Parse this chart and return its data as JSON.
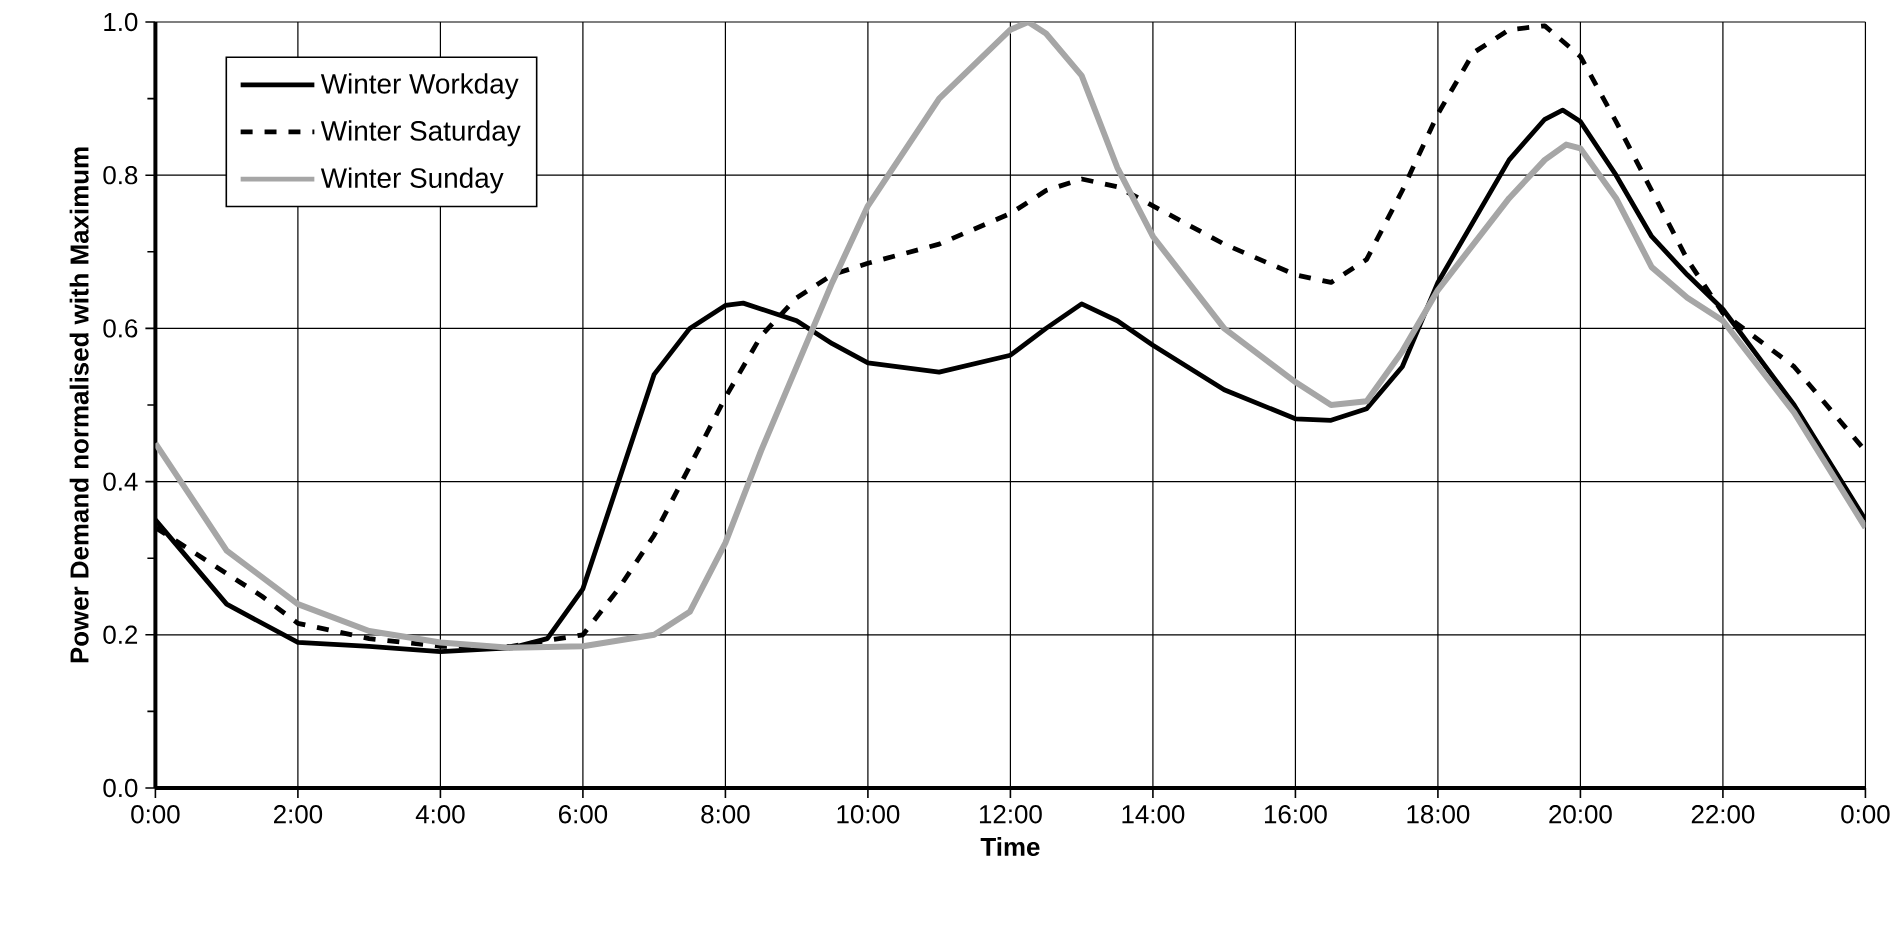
{
  "chart_data": {
    "type": "line",
    "xlabel": "Time",
    "ylabel": "Power Demand normalised with Maximum",
    "xlim": [
      0,
      24
    ],
    "ylim": [
      0,
      1
    ],
    "xticks": [
      {
        "value": 0,
        "label": "0:00"
      },
      {
        "value": 2,
        "label": "2:00"
      },
      {
        "value": 4,
        "label": "4:00"
      },
      {
        "value": 6,
        "label": "6:00"
      },
      {
        "value": 8,
        "label": "8:00"
      },
      {
        "value": 10,
        "label": "10:00"
      },
      {
        "value": 12,
        "label": "12:00"
      },
      {
        "value": 14,
        "label": "14:00"
      },
      {
        "value": 16,
        "label": "16:00"
      },
      {
        "value": 18,
        "label": "18:00"
      },
      {
        "value": 20,
        "label": "20:00"
      },
      {
        "value": 22,
        "label": "22:00"
      },
      {
        "value": 24,
        "label": "0:00"
      }
    ],
    "yticks": [
      {
        "value": 0,
        "label": "0.0"
      },
      {
        "value": 0.1,
        "label": null
      },
      {
        "value": 0.2,
        "label": "0.2"
      },
      {
        "value": 0.3,
        "label": null
      },
      {
        "value": 0.4,
        "label": "0.4"
      },
      {
        "value": 0.5,
        "label": null
      },
      {
        "value": 0.6,
        "label": "0.6"
      },
      {
        "value": 0.7,
        "label": null
      },
      {
        "value": 0.8,
        "label": "0.8"
      },
      {
        "value": 0.9,
        "label": null
      },
      {
        "value": 1,
        "label": "1.0"
      }
    ],
    "grid": true,
    "legend": "top left",
    "series": [
      {
        "name": "Winter Workday",
        "color": "#000000",
        "line_style": "solid",
        "x": [
          0,
          1,
          2,
          3,
          4,
          5,
          5.5,
          6,
          6.5,
          7,
          7.5,
          8,
          8.25,
          9,
          9.5,
          10,
          11,
          12,
          12.5,
          13,
          13.5,
          14,
          15,
          16,
          16.5,
          17,
          17.5,
          18,
          18.5,
          19,
          19.5,
          19.75,
          20,
          20.5,
          21,
          21.5,
          22,
          23,
          24
        ],
        "values": [
          0.35,
          0.24,
          0.19,
          0.185,
          0.178,
          0.183,
          0.195,
          0.26,
          0.4,
          0.54,
          0.6,
          0.63,
          0.633,
          0.61,
          0.58,
          0.555,
          0.543,
          0.565,
          0.6,
          0.632,
          0.61,
          0.578,
          0.52,
          0.482,
          0.48,
          0.495,
          0.55,
          0.66,
          0.74,
          0.82,
          0.873,
          0.885,
          0.87,
          0.8,
          0.72,
          0.67,
          0.625,
          0.5,
          0.35
        ]
      },
      {
        "name": "Winter Saturday",
        "color": "#000000",
        "line_style": "dashed",
        "x": [
          0,
          0.5,
          1,
          1.5,
          2,
          3,
          4,
          5,
          6,
          6.5,
          7,
          7.5,
          8,
          8.5,
          9,
          9.5,
          10,
          11,
          12,
          12.5,
          13,
          13.5,
          14,
          15,
          16,
          16.5,
          17,
          17.5,
          18,
          18.5,
          19,
          19.5,
          20,
          20.5,
          21,
          21.5,
          22,
          23,
          24
        ],
        "values": [
          0.34,
          0.31,
          0.28,
          0.25,
          0.215,
          0.195,
          0.185,
          0.185,
          0.2,
          0.26,
          0.33,
          0.42,
          0.51,
          0.59,
          0.64,
          0.67,
          0.685,
          0.71,
          0.75,
          0.78,
          0.795,
          0.785,
          0.76,
          0.71,
          0.67,
          0.66,
          0.69,
          0.78,
          0.88,
          0.96,
          0.99,
          0.995,
          0.955,
          0.87,
          0.78,
          0.69,
          0.62,
          0.55,
          0.44
        ]
      },
      {
        "name": "Winter Sunday",
        "color": "#a6a6a6",
        "line_style": "solid",
        "x": [
          0,
          1,
          2,
          3,
          4,
          5,
          6,
          7,
          7.5,
          8,
          8.5,
          9,
          9.5,
          10,
          11,
          12,
          12.25,
          12.5,
          13,
          13.5,
          14,
          15,
          16,
          16.5,
          17,
          17.5,
          18,
          19,
          19.5,
          19.8,
          20,
          20.5,
          21,
          21.5,
          22,
          23,
          24
        ],
        "values": [
          0.45,
          0.31,
          0.24,
          0.205,
          0.19,
          0.183,
          0.185,
          0.2,
          0.23,
          0.32,
          0.44,
          0.55,
          0.66,
          0.76,
          0.9,
          0.99,
          1.0,
          0.985,
          0.93,
          0.81,
          0.72,
          0.6,
          0.53,
          0.5,
          0.505,
          0.57,
          0.65,
          0.77,
          0.82,
          0.84,
          0.835,
          0.77,
          0.68,
          0.64,
          0.61,
          0.49,
          0.34
        ]
      }
    ]
  }
}
